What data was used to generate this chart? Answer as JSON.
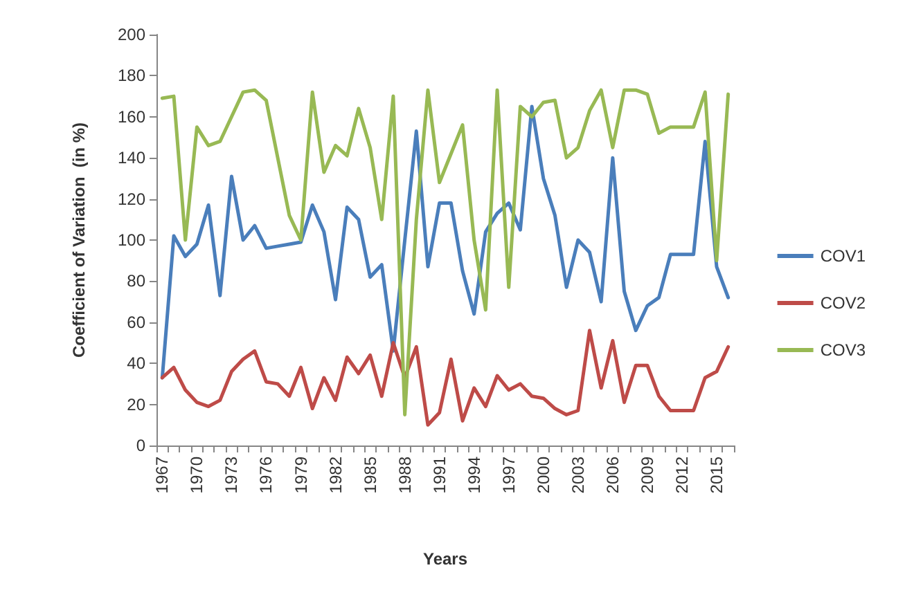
{
  "chart_data": {
    "type": "line",
    "xlabel": "Years",
    "ylabel": "Coefficient of Variation  (in %)",
    "categories": [
      "1967",
      null,
      null,
      "1970",
      null,
      null,
      "1973",
      null,
      null,
      "1976",
      null,
      null,
      "1979",
      null,
      null,
      "1982",
      null,
      null,
      "1985",
      null,
      null,
      "1988",
      null,
      null,
      "1991",
      null,
      null,
      "1994",
      null,
      null,
      "1997",
      null,
      null,
      "2000",
      null,
      null,
      "2003",
      null,
      null,
      "2006",
      null,
      null,
      "2009",
      null,
      null,
      "2012",
      null,
      null,
      "2015",
      null
    ],
    "series": [
      {
        "name": "COV1",
        "color": "#4a7ebb",
        "values": [
          33,
          102,
          92,
          98,
          117,
          73,
          131,
          100,
          107,
          96,
          97,
          98,
          99,
          117,
          104,
          71,
          116,
          110,
          82,
          88,
          46,
          100,
          153,
          87,
          118,
          118,
          85,
          64,
          104,
          113,
          118,
          105,
          165,
          130,
          112,
          77,
          100,
          94,
          70,
          140,
          75,
          56,
          68,
          72,
          93,
          93,
          93,
          148,
          87,
          72
        ]
      },
      {
        "name": "COV2",
        "color": "#be4b48",
        "values": [
          33,
          38,
          27,
          21,
          19,
          22,
          36,
          42,
          46,
          31,
          30,
          24,
          38,
          18,
          33,
          22,
          43,
          35,
          44,
          24,
          50,
          33,
          48,
          10,
          16,
          42,
          12,
          28,
          19,
          34,
          27,
          30,
          24,
          23,
          18,
          15,
          17,
          56,
          28,
          51,
          21,
          39,
          39,
          24,
          17,
          17,
          17,
          33,
          36,
          48
        ]
      },
      {
        "name": "COV3",
        "color": "#98b954",
        "values": [
          169,
          170,
          100,
          155,
          146,
          148,
          160,
          172,
          173,
          168,
          140,
          112,
          100,
          172,
          133,
          146,
          141,
          164,
          145,
          110,
          170,
          15,
          110,
          173,
          128,
          142,
          156,
          100,
          66,
          173,
          77,
          165,
          160,
          167,
          168,
          140,
          145,
          163,
          173,
          145,
          173,
          173,
          171,
          152,
          155,
          155,
          155,
          172,
          90,
          171
        ]
      }
    ],
    "ylim": [
      0,
      200
    ],
    "yticks": [
      0,
      20,
      40,
      60,
      80,
      100,
      120,
      140,
      160,
      180,
      200
    ],
    "grid": false,
    "legend": "right",
    "marker": "none",
    "line_style": "solid"
  }
}
